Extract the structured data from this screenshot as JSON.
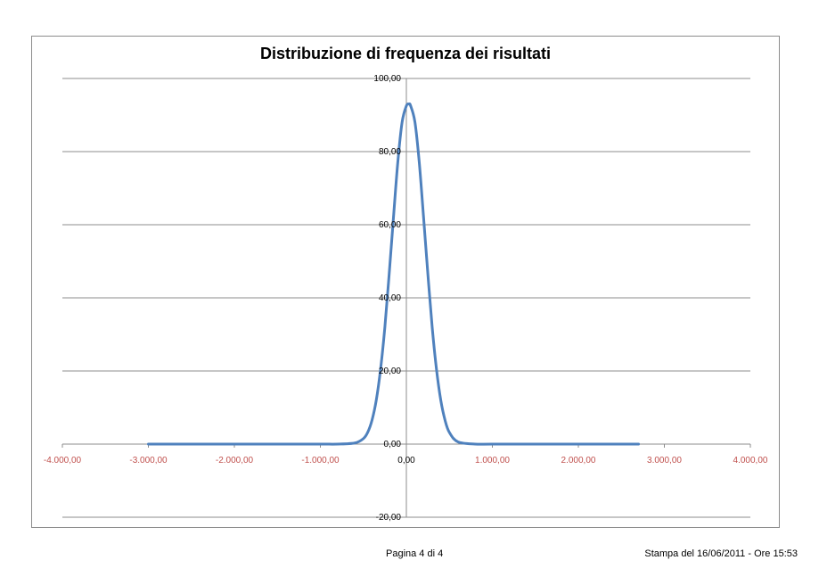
{
  "chart_data": {
    "type": "line",
    "title": "Distribuzione di frequenza dei risultati",
    "xlabel": "",
    "ylabel": "",
    "xlim": [
      -4000,
      4000
    ],
    "ylim": [
      -20,
      100
    ],
    "x_ticks": [
      -4000,
      -3000,
      -2000,
      -1000,
      0,
      1000,
      2000,
      3000,
      4000
    ],
    "x_tick_labels": [
      "-4.000,00",
      "-3.000,00",
      "-2.000,00",
      "-1.000,00",
      "0,00",
      "1.000,00",
      "2.000,00",
      "3.000,00",
      "4.000,00"
    ],
    "y_ticks": [
      -20,
      0,
      20,
      40,
      60,
      80,
      100
    ],
    "y_tick_labels": [
      "-20,00",
      "0,00",
      "20,00",
      "40,00",
      "60,00",
      "80,00",
      "100,00"
    ],
    "grid": "horizontal",
    "legend": "none",
    "series": [
      {
        "color": "#4f81bd",
        "x": [
          -3000,
          -2500,
          -2000,
          -1500,
          -1000,
          -800,
          -600,
          -500,
          -450,
          -400,
          -350,
          -300,
          -250,
          -200,
          -150,
          -100,
          -50,
          0,
          30,
          50,
          100,
          150,
          200,
          250,
          300,
          350,
          400,
          450,
          500,
          600,
          800,
          1000,
          1500,
          2000,
          2500,
          2700
        ],
        "y": [
          0,
          0,
          0,
          0,
          0,
          0,
          0.3,
          1.5,
          3.2,
          6.5,
          12,
          20.5,
          32,
          46.5,
          62,
          77,
          88,
          92.5,
          93,
          92.5,
          88,
          77,
          62,
          46.5,
          32,
          20.5,
          12,
          6.5,
          3.2,
          0.6,
          0,
          0,
          0,
          0,
          0,
          0
        ]
      }
    ],
    "axis_label_colors": {
      "x": "#c0504d",
      "y": "#000000"
    }
  },
  "footer": {
    "page": "Pagina 4 di 4",
    "printed": "Stampa del 16/06/2011 - Ore 15:53"
  }
}
